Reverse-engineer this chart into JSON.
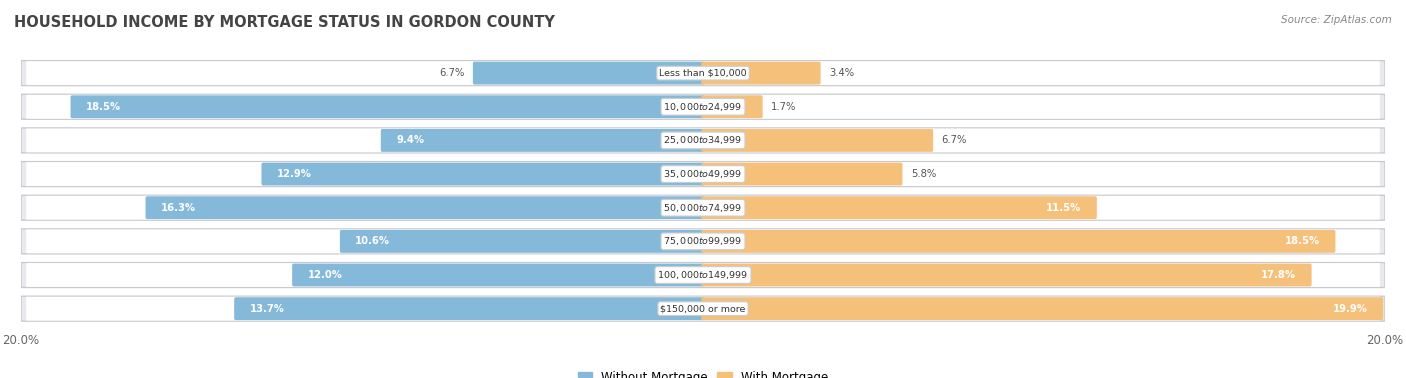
{
  "title": "HOUSEHOLD INCOME BY MORTGAGE STATUS IN GORDON COUNTY",
  "source": "Source: ZipAtlas.com",
  "categories": [
    "Less than $10,000",
    "$10,000 to $24,999",
    "$25,000 to $34,999",
    "$35,000 to $49,999",
    "$50,000 to $74,999",
    "$75,000 to $99,999",
    "$100,000 to $149,999",
    "$150,000 or more"
  ],
  "without_mortgage": [
    6.7,
    18.5,
    9.4,
    12.9,
    16.3,
    10.6,
    12.0,
    13.7
  ],
  "with_mortgage": [
    3.4,
    1.7,
    6.7,
    5.8,
    11.5,
    18.5,
    17.8,
    19.9
  ],
  "blue_color": "#85b9d9",
  "orange_color": "#f5c07a",
  "row_bg_color": "#e8eaee",
  "row_border_color": "#c8cacf",
  "title_color": "#444444",
  "source_color": "#888888",
  "axis_limit": 20.0,
  "inside_label_threshold": 8.0,
  "legend_without": "Without Mortgage",
  "legend_with": "With Mortgage"
}
